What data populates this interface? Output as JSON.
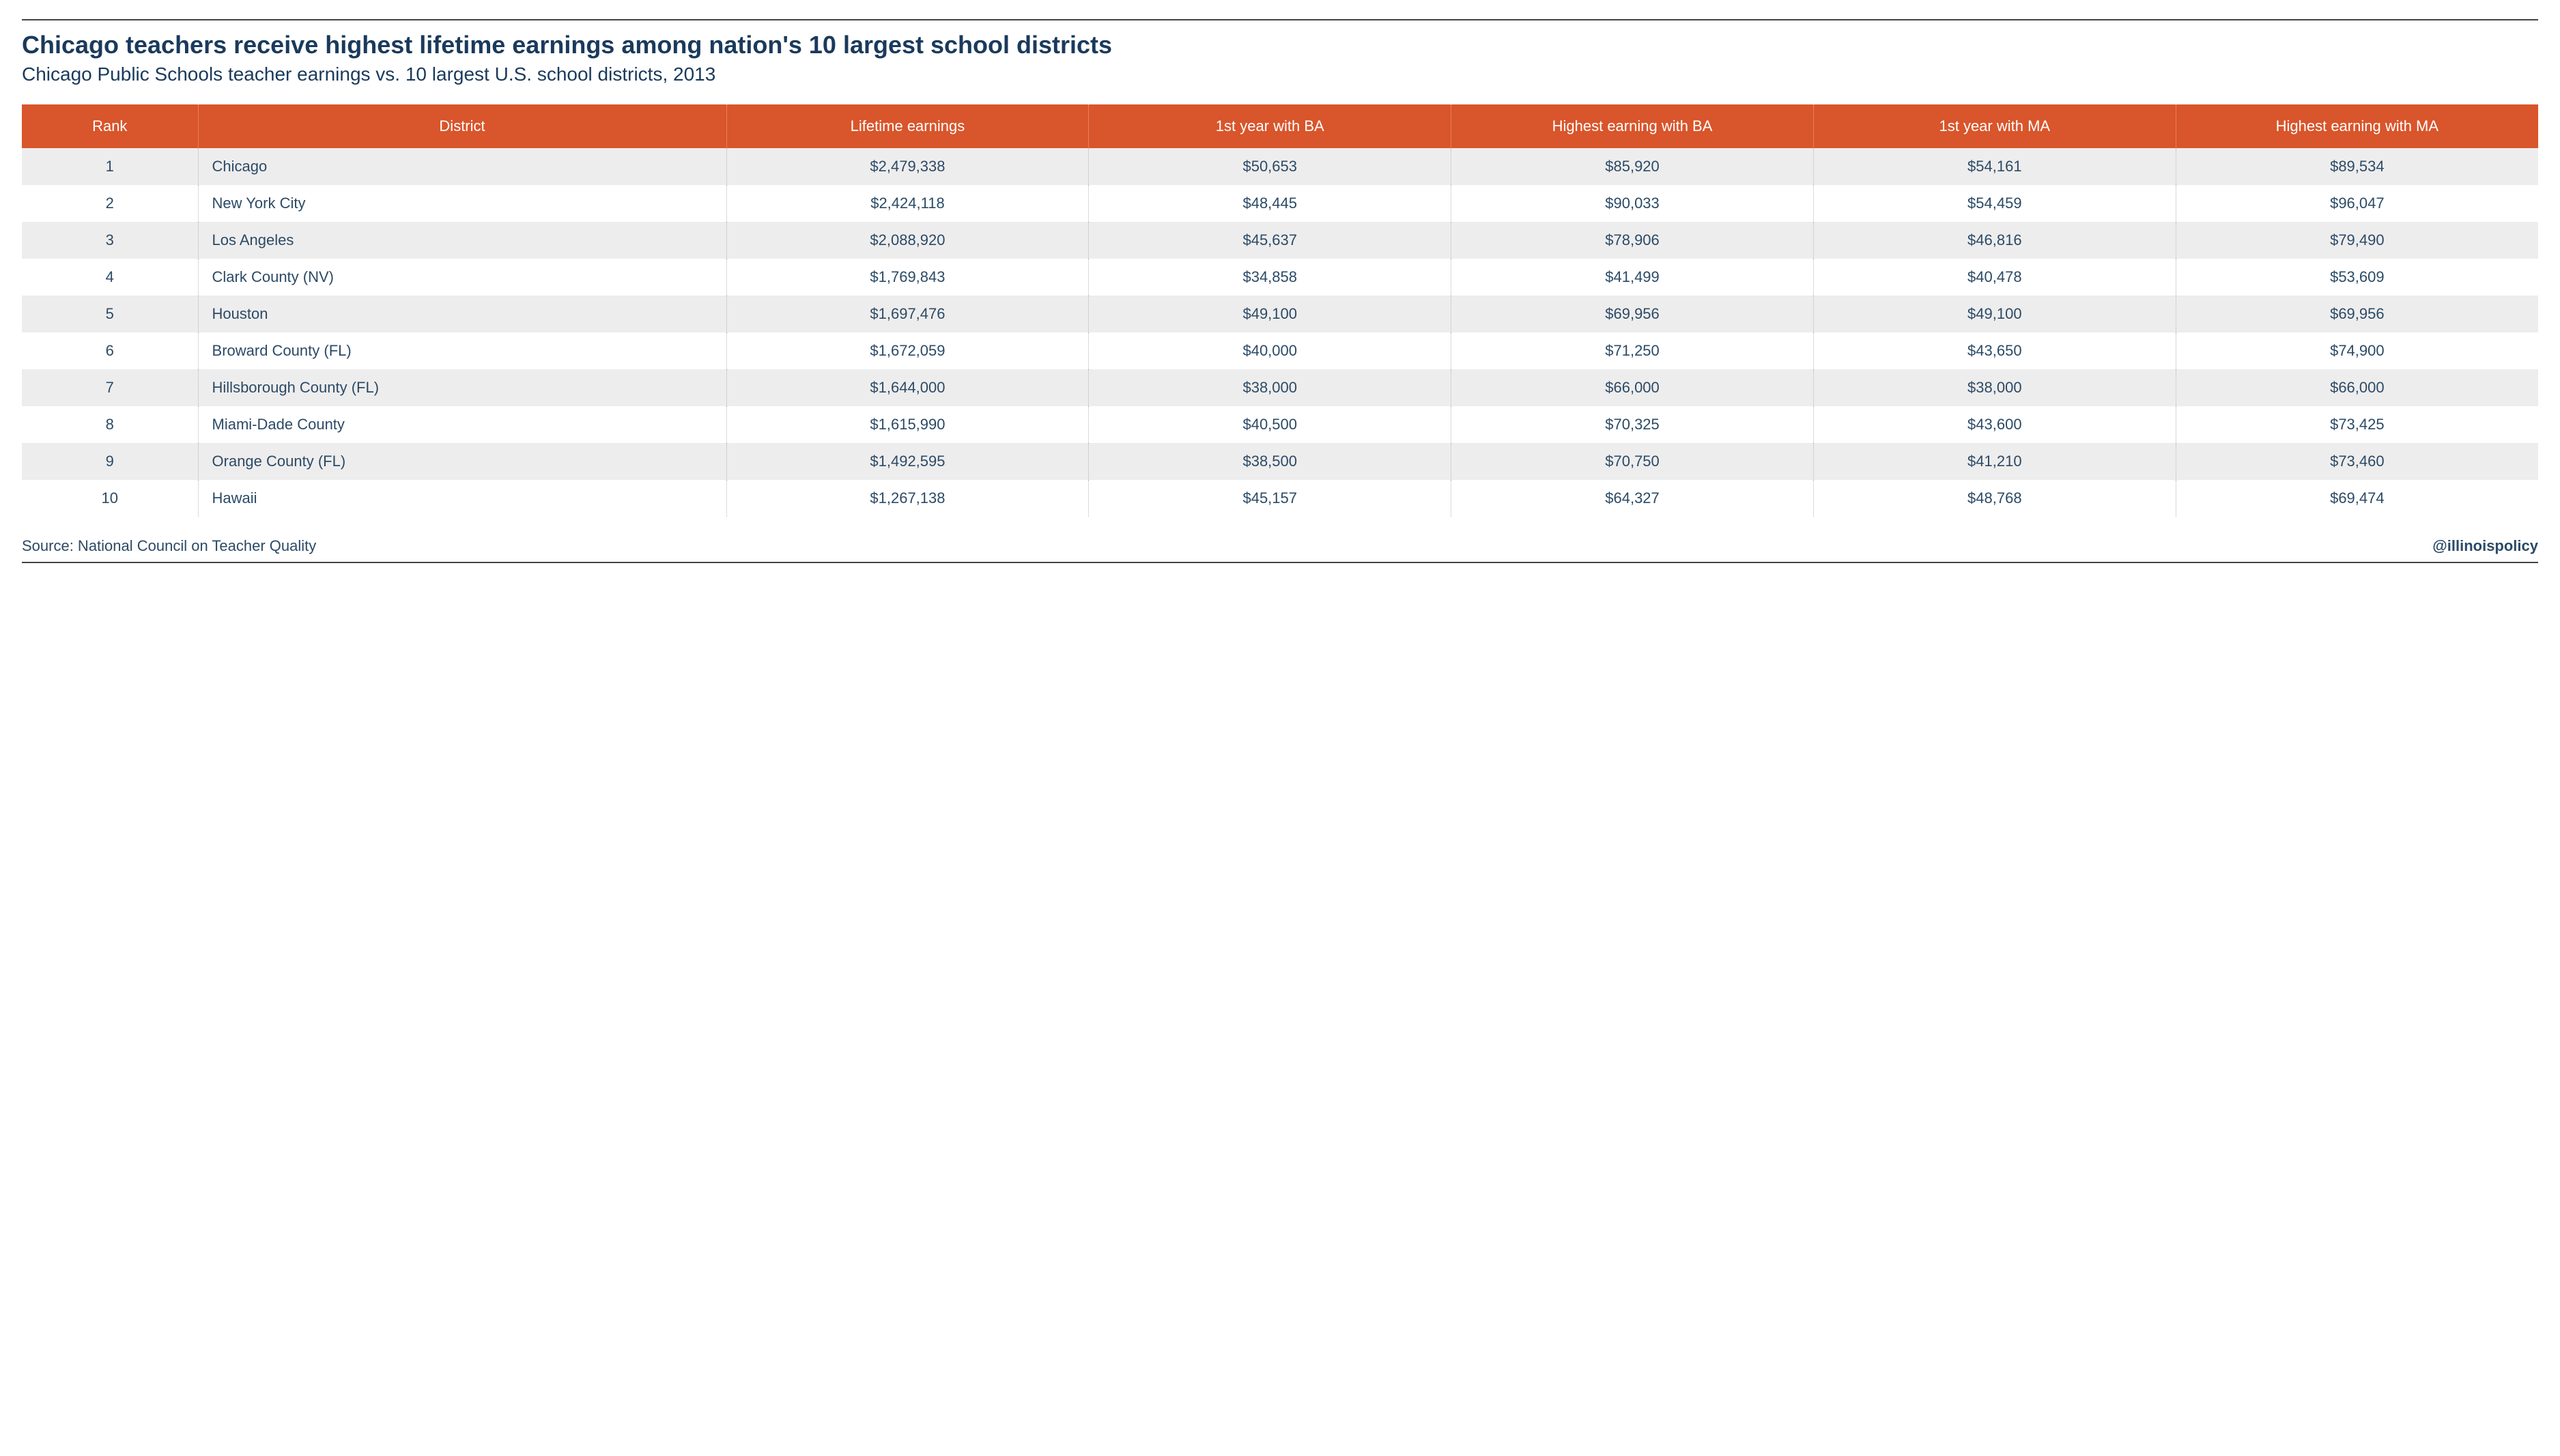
{
  "title": "Chicago teachers receive highest lifetime earnings among nation's 10 largest school districts",
  "subtitle": "Chicago Public Schools teacher earnings vs. 10 largest U.S. school districts, 2013",
  "source_label": "Source: National Council on Teacher Quality",
  "handle": "@illinoispolicy",
  "table": {
    "type": "table",
    "header_bg": "#d9552b",
    "header_text_color": "#ffffff",
    "row_odd_bg": "#eeeded",
    "row_even_bg": "#ffffff",
    "cell_text_color": "#2b4a66",
    "border_color": "#b8b8b8",
    "title_color": "#1a3a5c",
    "title_fontsize": 36,
    "subtitle_fontsize": 28,
    "header_fontsize": 22,
    "cell_fontsize": 22,
    "columns": [
      {
        "key": "rank",
        "label": "Rank",
        "align": "center",
        "width": "7%"
      },
      {
        "key": "district",
        "label": "District",
        "align": "left",
        "width": "21%"
      },
      {
        "key": "lifetime",
        "label": "Lifetime earnings",
        "align": "center",
        "width": "14.4%"
      },
      {
        "key": "ba1",
        "label": "1st year with BA",
        "align": "center",
        "width": "14.4%"
      },
      {
        "key": "bahi",
        "label": "Highest earning with BA",
        "align": "center",
        "width": "14.4%"
      },
      {
        "key": "ma1",
        "label": "1st year with MA",
        "align": "center",
        "width": "14.4%"
      },
      {
        "key": "mahi",
        "label": "Highest earning with MA",
        "align": "center",
        "width": "14.4%"
      }
    ],
    "rows": [
      {
        "rank": "1",
        "district": "Chicago",
        "lifetime": "$2,479,338",
        "ba1": "$50,653",
        "bahi": "$85,920",
        "ma1": "$54,161",
        "mahi": "$89,534"
      },
      {
        "rank": "2",
        "district": "New York City",
        "lifetime": "$2,424,118",
        "ba1": "$48,445",
        "bahi": "$90,033",
        "ma1": "$54,459",
        "mahi": "$96,047"
      },
      {
        "rank": "3",
        "district": "Los Angeles",
        "lifetime": "$2,088,920",
        "ba1": "$45,637",
        "bahi": "$78,906",
        "ma1": "$46,816",
        "mahi": "$79,490"
      },
      {
        "rank": "4",
        "district": "Clark County (NV)",
        "lifetime": "$1,769,843",
        "ba1": "$34,858",
        "bahi": "$41,499",
        "ma1": "$40,478",
        "mahi": "$53,609"
      },
      {
        "rank": "5",
        "district": "Houston",
        "lifetime": "$1,697,476",
        "ba1": "$49,100",
        "bahi": "$69,956",
        "ma1": "$49,100",
        "mahi": "$69,956"
      },
      {
        "rank": "6",
        "district": "Broward County (FL)",
        "lifetime": "$1,672,059",
        "ba1": "$40,000",
        "bahi": "$71,250",
        "ma1": "$43,650",
        "mahi": "$74,900"
      },
      {
        "rank": "7",
        "district": "Hillsborough County (FL)",
        "lifetime": "$1,644,000",
        "ba1": "$38,000",
        "bahi": "$66,000",
        "ma1": "$38,000",
        "mahi": "$66,000"
      },
      {
        "rank": "8",
        "district": "Miami-Dade County",
        "lifetime": "$1,615,990",
        "ba1": "$40,500",
        "bahi": "$70,325",
        "ma1": "$43,600",
        "mahi": "$73,425"
      },
      {
        "rank": "9",
        "district": "Orange County (FL)",
        "lifetime": "$1,492,595",
        "ba1": "$38,500",
        "bahi": "$70,750",
        "ma1": "$41,210",
        "mahi": "$73,460"
      },
      {
        "rank": "10",
        "district": "Hawaii",
        "lifetime": "$1,267,138",
        "ba1": "$45,157",
        "bahi": "$64,327",
        "ma1": "$48,768",
        "mahi": "$69,474"
      }
    ]
  }
}
